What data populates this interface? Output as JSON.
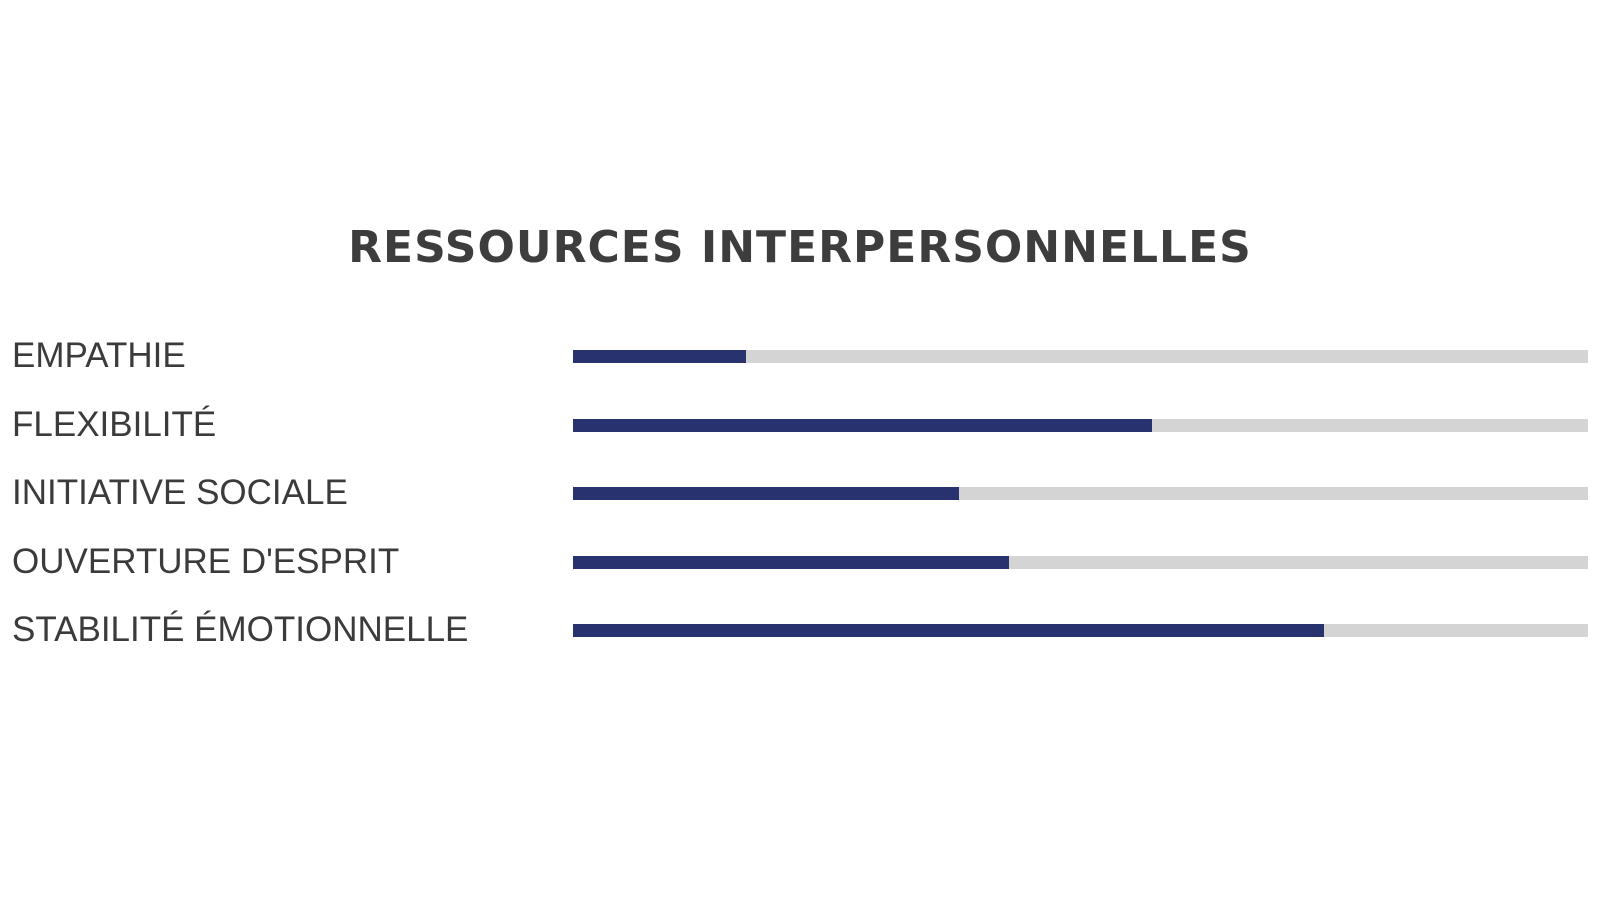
{
  "chart_data": {
    "type": "bar",
    "orientation": "horizontal",
    "title": "RESSOURCES INTERPERSONNELLES",
    "categories": [
      "EMPATHIE",
      "FLEXIBILITÉ",
      "INITIATIVE SOCIALE",
      "OUVERTURE D'ESPRIT",
      "STABILITÉ ÉMOTIONNELLE"
    ],
    "values": [
      17,
      57,
      38,
      43,
      74
    ],
    "xlim": [
      0,
      100
    ],
    "grid": false,
    "colors": {
      "fill": "#28326f",
      "track": "#d4d4d4",
      "text": "#3d3d3d"
    }
  }
}
